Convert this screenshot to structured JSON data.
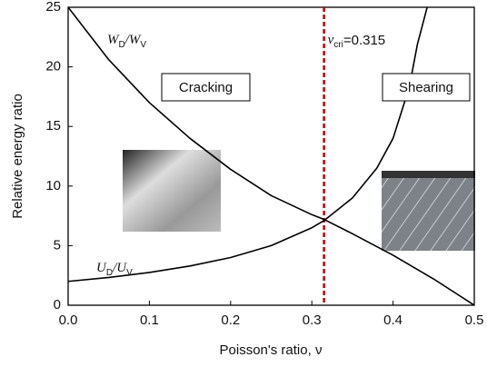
{
  "chart_data": {
    "type": "line",
    "xlabel": "Poisson's ratio, ν",
    "ylabel": "Relative energy ratio",
    "xlim": [
      0,
      0.5
    ],
    "ylim": [
      0,
      25
    ],
    "xticks": [
      {
        "value": 0,
        "label": "0.0"
      },
      {
        "value": 0.1,
        "label": "0.1"
      },
      {
        "value": 0.2,
        "label": "0.2"
      },
      {
        "value": 0.3,
        "label": "0.3"
      },
      {
        "value": 0.4,
        "label": "0.4"
      },
      {
        "value": 0.5,
        "label": "0.5"
      }
    ],
    "yticks": [
      0,
      5,
      10,
      15,
      20,
      25
    ],
    "series": [
      {
        "name_parts": [
          "W",
          "D",
          "/W",
          "V"
        ],
        "color": "#000000",
        "x": [
          0,
          0.05,
          0.1,
          0.15,
          0.2,
          0.25,
          0.3,
          0.315,
          0.35,
          0.4,
          0.45,
          0.5
        ],
        "values": [
          25,
          20.6,
          17,
          14,
          11.4,
          9.2,
          7.6,
          7.2,
          6.0,
          4.2,
          2.2,
          0
        ]
      },
      {
        "name_parts": [
          "U",
          "D",
          "/U",
          "V"
        ],
        "color": "#000000",
        "x": [
          0,
          0.05,
          0.1,
          0.15,
          0.2,
          0.25,
          0.3,
          0.315,
          0.35,
          0.38,
          0.4,
          0.42,
          0.43,
          0.442
        ],
        "values": [
          2,
          2.33,
          2.75,
          3.29,
          4,
          5,
          6.5,
          7.1,
          9,
          11.5,
          14,
          18.3,
          21.9,
          25
        ]
      }
    ],
    "critical": {
      "value": 0.315,
      "color": "#c00000",
      "label_parts": [
        "ν",
        "cri",
        "=0.315"
      ]
    },
    "annotations": [
      "Cracking",
      "Shearing"
    ]
  }
}
